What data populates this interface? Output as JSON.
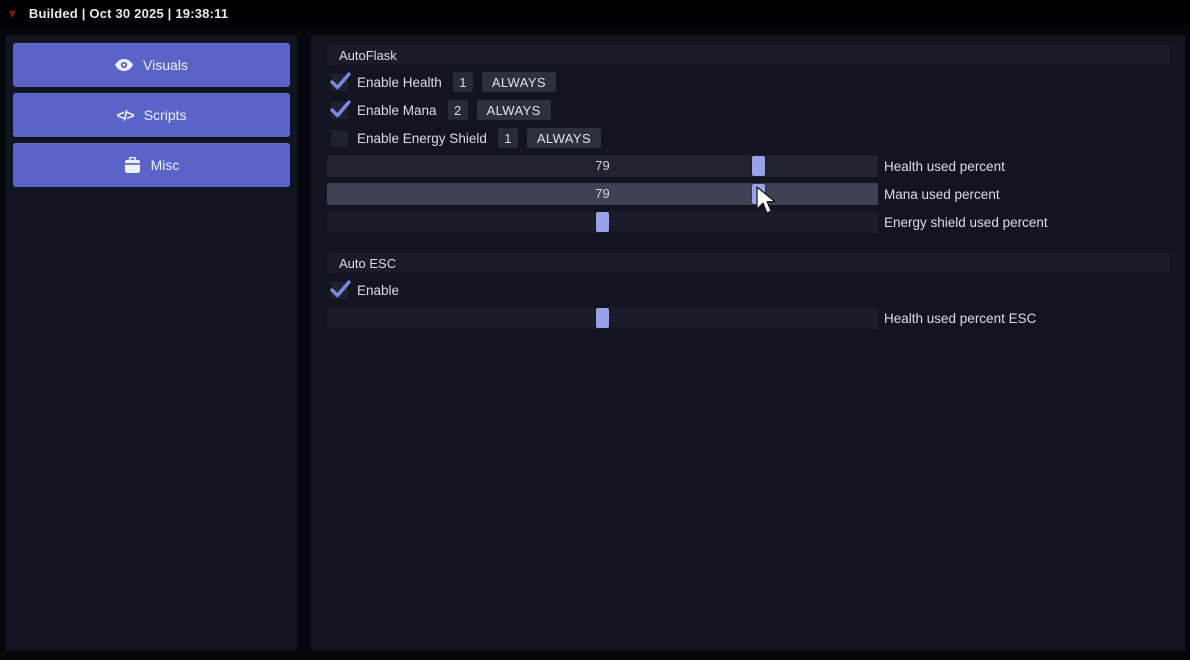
{
  "titlebar": {
    "collapse_icon": "▼",
    "title": "Builded | Oct 30 2025 | 19:38:11"
  },
  "sidebar": {
    "buttons": [
      {
        "icon": "eye-icon",
        "label": "Visuals"
      },
      {
        "icon": "code-icon",
        "label": "Scripts"
      },
      {
        "icon": "briefcase-icon",
        "label": "Misc"
      }
    ]
  },
  "autoflask": {
    "title": "AutoFlask",
    "rows": [
      {
        "label": "Enable Health",
        "checked": true,
        "flask_slot": "1",
        "mode": "ALWAYS"
      },
      {
        "label": "Enable Mana",
        "checked": true,
        "flask_slot": "2",
        "mode": "ALWAYS"
      },
      {
        "label": "Enable Energy Shield",
        "checked": false,
        "flask_slot": "1",
        "mode": "ALWAYS"
      }
    ],
    "sliders": [
      {
        "value": 79,
        "label": "Health used percent",
        "hovered": false
      },
      {
        "value": 79,
        "label": "Mana used percent",
        "hovered": true
      },
      {
        "value": 50,
        "label": "Energy shield used percent",
        "hovered": false
      }
    ]
  },
  "autoesc": {
    "title": "Auto ESC",
    "rows": [
      {
        "label": "Enable",
        "checked": true
      }
    ],
    "sliders": [
      {
        "value": 50,
        "label": "Health used percent ESC",
        "hovered": false
      }
    ]
  },
  "colors": {
    "accent": "#5a64c8",
    "slider_handle": "#97a2ea",
    "checkmark": "#7c88e6",
    "panel_bg": "#12141f",
    "titlebar_bg": "#010104"
  },
  "code_icon_glyph": "</>"
}
